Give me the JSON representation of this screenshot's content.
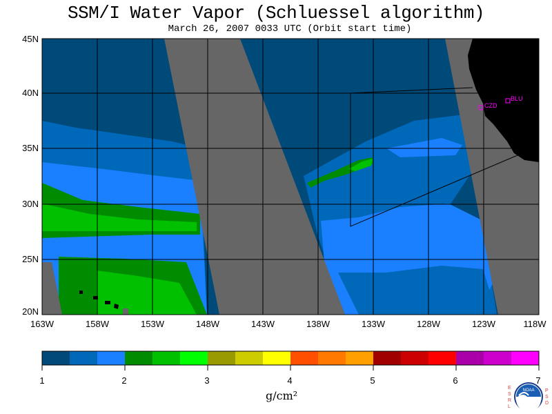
{
  "title": "SSM/I Water Vapor (Schluessel algorithm)",
  "subtitle": "March 26, 2007  0033 UTC  (Orbit start time)",
  "map": {
    "lat_labels": [
      "45N",
      "40N",
      "35N",
      "30N",
      "25N",
      "20N"
    ],
    "lon_labels": [
      "163W",
      "158W",
      "153W",
      "148W",
      "143W",
      "138W",
      "133W",
      "128W",
      "123W",
      "118W"
    ],
    "stations": [
      {
        "name": "CZD"
      },
      {
        "name": "BLU"
      }
    ],
    "colors": {
      "no_data": "#666666",
      "land": "#000000",
      "station": "#ff00ff"
    }
  },
  "colorbar": {
    "colors": [
      "#004a7a",
      "#0068b8",
      "#1a80ff",
      "#008c00",
      "#00c000",
      "#00ff00",
      "#999900",
      "#cccc00",
      "#ffff00",
      "#ff5000",
      "#ff7800",
      "#ffa000",
      "#a00000",
      "#cc0000",
      "#ff0000",
      "#aa00aa",
      "#cc00cc",
      "#ff00ff"
    ],
    "ticks": [
      "1",
      "2",
      "3",
      "4",
      "5",
      "6",
      "7"
    ],
    "units": "g/cm²"
  },
  "logo": {
    "left_text": "ESRL",
    "right_text": "PSD",
    "emblem": "NOAA"
  }
}
